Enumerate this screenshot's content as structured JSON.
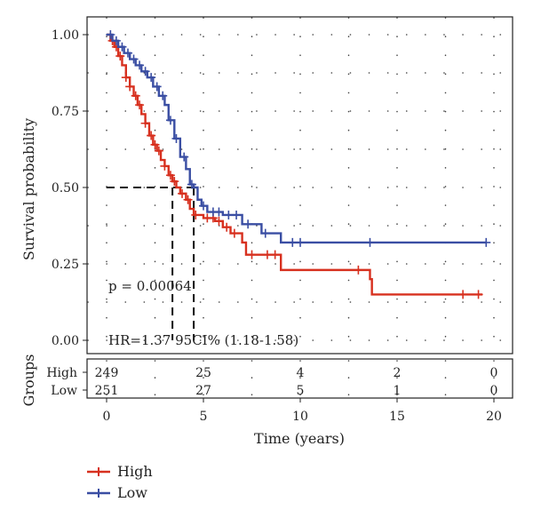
{
  "chart_data": {
    "type": "line",
    "subtype": "kaplan-meier",
    "xlabel": "Time (years)",
    "ylabel": "Survival probability",
    "xlim": [
      0,
      20
    ],
    "ylim": [
      0,
      1
    ],
    "xticks": [
      0,
      5,
      10,
      15,
      20
    ],
    "yticks": [
      0.0,
      0.25,
      0.5,
      0.75,
      1.0
    ],
    "ytick_labels": [
      "0.00",
      "0.25",
      "0.50",
      "0.75",
      "1.00"
    ],
    "grid": "dotted",
    "annotations": {
      "pvalue": "p = 0.00064",
      "hr": "HR=1.37 95CI% (1.18-1.58)"
    },
    "median_survival": {
      "y": 0.5,
      "High": 3.4,
      "Low": 4.5
    },
    "series": [
      {
        "name": "High",
        "color": "#d7301f",
        "steps": [
          [
            0,
            1.0
          ],
          [
            0.2,
            0.98
          ],
          [
            0.4,
            0.96
          ],
          [
            0.6,
            0.93
          ],
          [
            0.8,
            0.9
          ],
          [
            1.0,
            0.86
          ],
          [
            1.2,
            0.83
          ],
          [
            1.4,
            0.8
          ],
          [
            1.6,
            0.77
          ],
          [
            1.8,
            0.74
          ],
          [
            2.0,
            0.71
          ],
          [
            2.2,
            0.67
          ],
          [
            2.4,
            0.64
          ],
          [
            2.6,
            0.62
          ],
          [
            2.8,
            0.59
          ],
          [
            3.0,
            0.57
          ],
          [
            3.2,
            0.54
          ],
          [
            3.4,
            0.52
          ],
          [
            3.6,
            0.5
          ],
          [
            3.8,
            0.48
          ],
          [
            4.1,
            0.46
          ],
          [
            4.3,
            0.43
          ],
          [
            4.5,
            0.41
          ],
          [
            5.0,
            0.4
          ],
          [
            5.6,
            0.39
          ],
          [
            6.0,
            0.37
          ],
          [
            6.4,
            0.35
          ],
          [
            7.0,
            0.32
          ],
          [
            7.2,
            0.28
          ],
          [
            8.0,
            0.28
          ],
          [
            9.0,
            0.23
          ],
          [
            13.6,
            0.2
          ],
          [
            13.7,
            0.15
          ],
          [
            19.4,
            0.15
          ]
        ],
        "censor_times": [
          0.3,
          0.5,
          0.7,
          1.0,
          1.2,
          1.5,
          1.7,
          2.0,
          2.3,
          2.5,
          2.7,
          3.0,
          3.3,
          3.5,
          3.9,
          4.2,
          4.6,
          5.2,
          5.5,
          5.8,
          6.2,
          6.6,
          7.5,
          8.3,
          8.7,
          13.0,
          18.4,
          19.2
        ],
        "at_risk": [
          249,
          25,
          4,
          2,
          0
        ]
      },
      {
        "name": "Low",
        "color": "#3a4ea3",
        "steps": [
          [
            0,
            1.0
          ],
          [
            0.3,
            0.98
          ],
          [
            0.6,
            0.96
          ],
          [
            0.9,
            0.94
          ],
          [
            1.2,
            0.92
          ],
          [
            1.5,
            0.9
          ],
          [
            1.8,
            0.88
          ],
          [
            2.1,
            0.86
          ],
          [
            2.4,
            0.83
          ],
          [
            2.7,
            0.8
          ],
          [
            3.0,
            0.77
          ],
          [
            3.2,
            0.72
          ],
          [
            3.5,
            0.66
          ],
          [
            3.8,
            0.6
          ],
          [
            4.1,
            0.56
          ],
          [
            4.3,
            0.51
          ],
          [
            4.5,
            0.5
          ],
          [
            4.7,
            0.46
          ],
          [
            4.9,
            0.44
          ],
          [
            5.2,
            0.42
          ],
          [
            6.0,
            0.41
          ],
          [
            7.0,
            0.38
          ],
          [
            8.0,
            0.35
          ],
          [
            9.0,
            0.32
          ],
          [
            19.6,
            0.32
          ]
        ],
        "censor_times": [
          0.2,
          0.5,
          0.8,
          1.1,
          1.4,
          1.7,
          2.0,
          2.3,
          2.6,
          2.9,
          3.3,
          3.6,
          4.0,
          4.4,
          5.0,
          5.5,
          5.8,
          6.3,
          6.7,
          7.3,
          8.2,
          9.6,
          10.0,
          13.6,
          19.6
        ],
        "at_risk": [
          251,
          27,
          5,
          1,
          0
        ]
      }
    ],
    "risk_table": {
      "title": "Groups",
      "rows": [
        "High",
        "Low"
      ],
      "times": [
        0,
        5,
        10,
        15,
        20
      ]
    },
    "legend": {
      "position": "bottom-left",
      "entries": [
        "High",
        "Low"
      ]
    }
  }
}
